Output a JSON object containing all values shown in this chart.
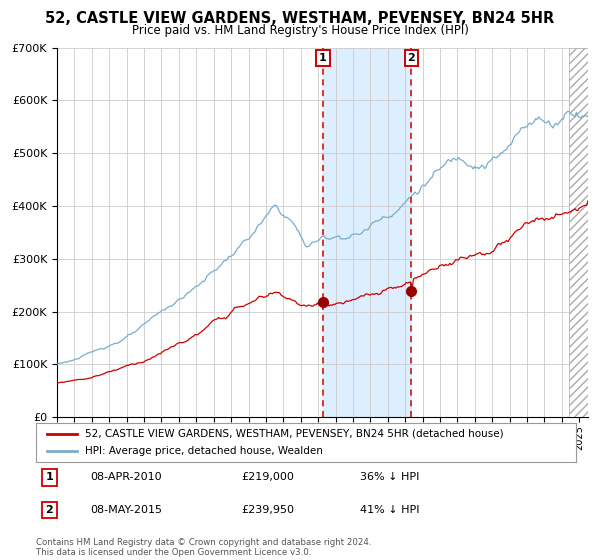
{
  "title": "52, CASTLE VIEW GARDENS, WESTHAM, PEVENSEY, BN24 5HR",
  "subtitle": "Price paid vs. HM Land Registry's House Price Index (HPI)",
  "legend_red": "52, CASTLE VIEW GARDENS, WESTHAM, PEVENSEY, BN24 5HR (detached house)",
  "legend_blue": "HPI: Average price, detached house, Wealden",
  "annotation1_date": "08-APR-2010",
  "annotation1_price": "£219,000",
  "annotation1_hpi": "36% ↓ HPI",
  "annotation2_date": "08-MAY-2015",
  "annotation2_price": "£239,950",
  "annotation2_hpi": "41% ↓ HPI",
  "sale1_year": 2010.27,
  "sale1_value_red": 219000,
  "sale2_year": 2015.36,
  "sale2_value_red": 239950,
  "copyright": "Contains HM Land Registry data © Crown copyright and database right 2024.\nThis data is licensed under the Open Government Licence v3.0.",
  "red_color": "#cc0000",
  "blue_color": "#7aadcc",
  "shade_color": "#ddeeff",
  "grid_color": "#cccccc",
  "bg_color": "#ffffff",
  "title_fontsize": 10.5,
  "subtitle_fontsize": 8.5,
  "ylim": [
    0,
    700000
  ],
  "xmin": 1995.0,
  "xmax": 2025.5,
  "hatch_start": 2024.42
}
